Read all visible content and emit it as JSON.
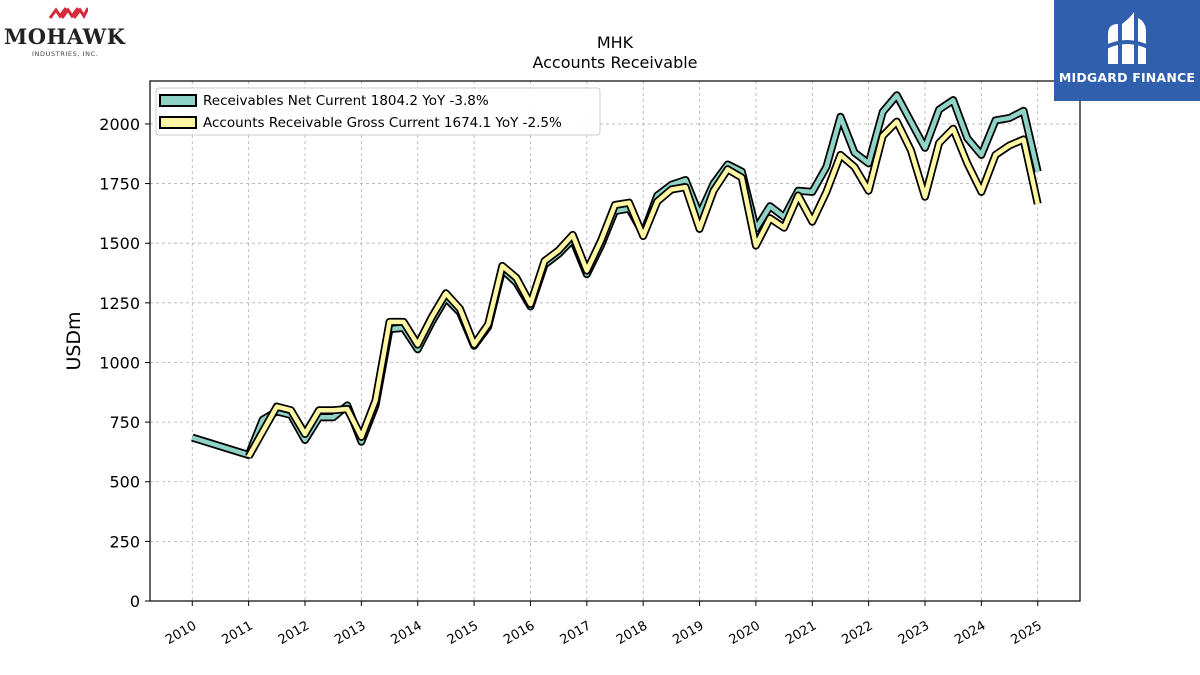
{
  "logos": {
    "left": {
      "name": "MOHAWK",
      "subtitle": "INDUSTRIES, INC."
    },
    "right": {
      "name": "MIDGARD FINANCE",
      "background": "#2f5fad"
    }
  },
  "chart_data": {
    "type": "line",
    "title": "MHK",
    "subtitle": "Accounts Receivable",
    "ylabel": "USDm",
    "xlabel": "",
    "ylim": [
      0,
      2180
    ],
    "xlim": [
      2009.25,
      2025.75
    ],
    "yticks": [
      0,
      250,
      500,
      750,
      1000,
      1250,
      1500,
      1750,
      2000
    ],
    "xticks": [
      2010,
      2011,
      2012,
      2013,
      2014,
      2015,
      2016,
      2017,
      2018,
      2019,
      2020,
      2021,
      2022,
      2023,
      2024,
      2025
    ],
    "grid": true,
    "legend_position": "top-left",
    "series": [
      {
        "name": "Receivables Net Current",
        "legend": "Receivables Net Current  1804.2 YoY -3.8%",
        "color": "#8fd3c6",
        "points": [
          [
            2010.0,
            685
          ],
          [
            2011.0,
            612
          ],
          [
            2011.25,
            760
          ],
          [
            2011.5,
            795
          ],
          [
            2011.75,
            780
          ],
          [
            2012.0,
            675
          ],
          [
            2012.25,
            770
          ],
          [
            2012.5,
            770
          ],
          [
            2012.75,
            820
          ],
          [
            2013.0,
            668
          ],
          [
            2013.25,
            820
          ],
          [
            2013.5,
            1140
          ],
          [
            2013.75,
            1145
          ],
          [
            2014.0,
            1055
          ],
          [
            2014.25,
            1170
          ],
          [
            2014.5,
            1270
          ],
          [
            2014.75,
            1210
          ],
          [
            2015.0,
            1070
          ],
          [
            2015.25,
            1150
          ],
          [
            2015.5,
            1390
          ],
          [
            2015.75,
            1335
          ],
          [
            2016.0,
            1235
          ],
          [
            2016.25,
            1410
          ],
          [
            2016.5,
            1455
          ],
          [
            2016.75,
            1515
          ],
          [
            2017.0,
            1370
          ],
          [
            2017.25,
            1490
          ],
          [
            2017.5,
            1635
          ],
          [
            2017.75,
            1645
          ],
          [
            2018.0,
            1540
          ],
          [
            2018.25,
            1700
          ],
          [
            2018.5,
            1745
          ],
          [
            2018.75,
            1765
          ],
          [
            2019.0,
            1620
          ],
          [
            2019.25,
            1750
          ],
          [
            2019.5,
            1830
          ],
          [
            2019.75,
            1800
          ],
          [
            2020.0,
            1560
          ],
          [
            2020.25,
            1655
          ],
          [
            2020.5,
            1610
          ],
          [
            2020.75,
            1720
          ],
          [
            2021.0,
            1715
          ],
          [
            2021.25,
            1820
          ],
          [
            2021.5,
            2030
          ],
          [
            2021.75,
            1880
          ],
          [
            2022.0,
            1835
          ],
          [
            2022.25,
            2050
          ],
          [
            2022.5,
            2120
          ],
          [
            2022.75,
            2010
          ],
          [
            2023.0,
            1900
          ],
          [
            2023.25,
            2060
          ],
          [
            2023.5,
            2100
          ],
          [
            2023.75,
            1940
          ],
          [
            2024.0,
            1870
          ],
          [
            2024.25,
            2015
          ],
          [
            2024.5,
            2025
          ],
          [
            2024.75,
            2055
          ],
          [
            2025.0,
            1800
          ]
        ]
      },
      {
        "name": "Accounts Receivable Gross Current",
        "legend": "Accounts Receivable Gross Current  1674.1 YoY -2.5%",
        "color": "#fff7a3",
        "points": [
          [
            2011.0,
            605
          ],
          [
            2011.25,
            710
          ],
          [
            2011.5,
            815
          ],
          [
            2011.75,
            800
          ],
          [
            2012.0,
            700
          ],
          [
            2012.25,
            800
          ],
          [
            2012.5,
            800
          ],
          [
            2012.75,
            805
          ],
          [
            2013.0,
            688
          ],
          [
            2013.25,
            840
          ],
          [
            2013.5,
            1170
          ],
          [
            2013.75,
            1170
          ],
          [
            2014.0,
            1075
          ],
          [
            2014.25,
            1190
          ],
          [
            2014.5,
            1290
          ],
          [
            2014.75,
            1225
          ],
          [
            2015.0,
            1075
          ],
          [
            2015.25,
            1160
          ],
          [
            2015.5,
            1405
          ],
          [
            2015.75,
            1355
          ],
          [
            2016.0,
            1245
          ],
          [
            2016.25,
            1425
          ],
          [
            2016.5,
            1470
          ],
          [
            2016.75,
            1535
          ],
          [
            2017.0,
            1385
          ],
          [
            2017.25,
            1510
          ],
          [
            2017.5,
            1660
          ],
          [
            2017.75,
            1670
          ],
          [
            2018.0,
            1530
          ],
          [
            2018.25,
            1675
          ],
          [
            2018.5,
            1725
          ],
          [
            2018.75,
            1735
          ],
          [
            2019.0,
            1560
          ],
          [
            2019.25,
            1720
          ],
          [
            2019.5,
            1810
          ],
          [
            2019.75,
            1775
          ],
          [
            2020.0,
            1490
          ],
          [
            2020.25,
            1605
          ],
          [
            2020.5,
            1565
          ],
          [
            2020.75,
            1700
          ],
          [
            2021.0,
            1590
          ],
          [
            2021.25,
            1715
          ],
          [
            2021.5,
            1870
          ],
          [
            2021.75,
            1820
          ],
          [
            2022.0,
            1720
          ],
          [
            2022.25,
            1950
          ],
          [
            2022.5,
            2010
          ],
          [
            2022.75,
            1890
          ],
          [
            2023.0,
            1695
          ],
          [
            2023.25,
            1920
          ],
          [
            2023.5,
            1980
          ],
          [
            2023.75,
            1835
          ],
          [
            2024.0,
            1715
          ],
          [
            2024.25,
            1870
          ],
          [
            2024.5,
            1910
          ],
          [
            2024.75,
            1935
          ],
          [
            2025.0,
            1665
          ]
        ]
      }
    ]
  }
}
